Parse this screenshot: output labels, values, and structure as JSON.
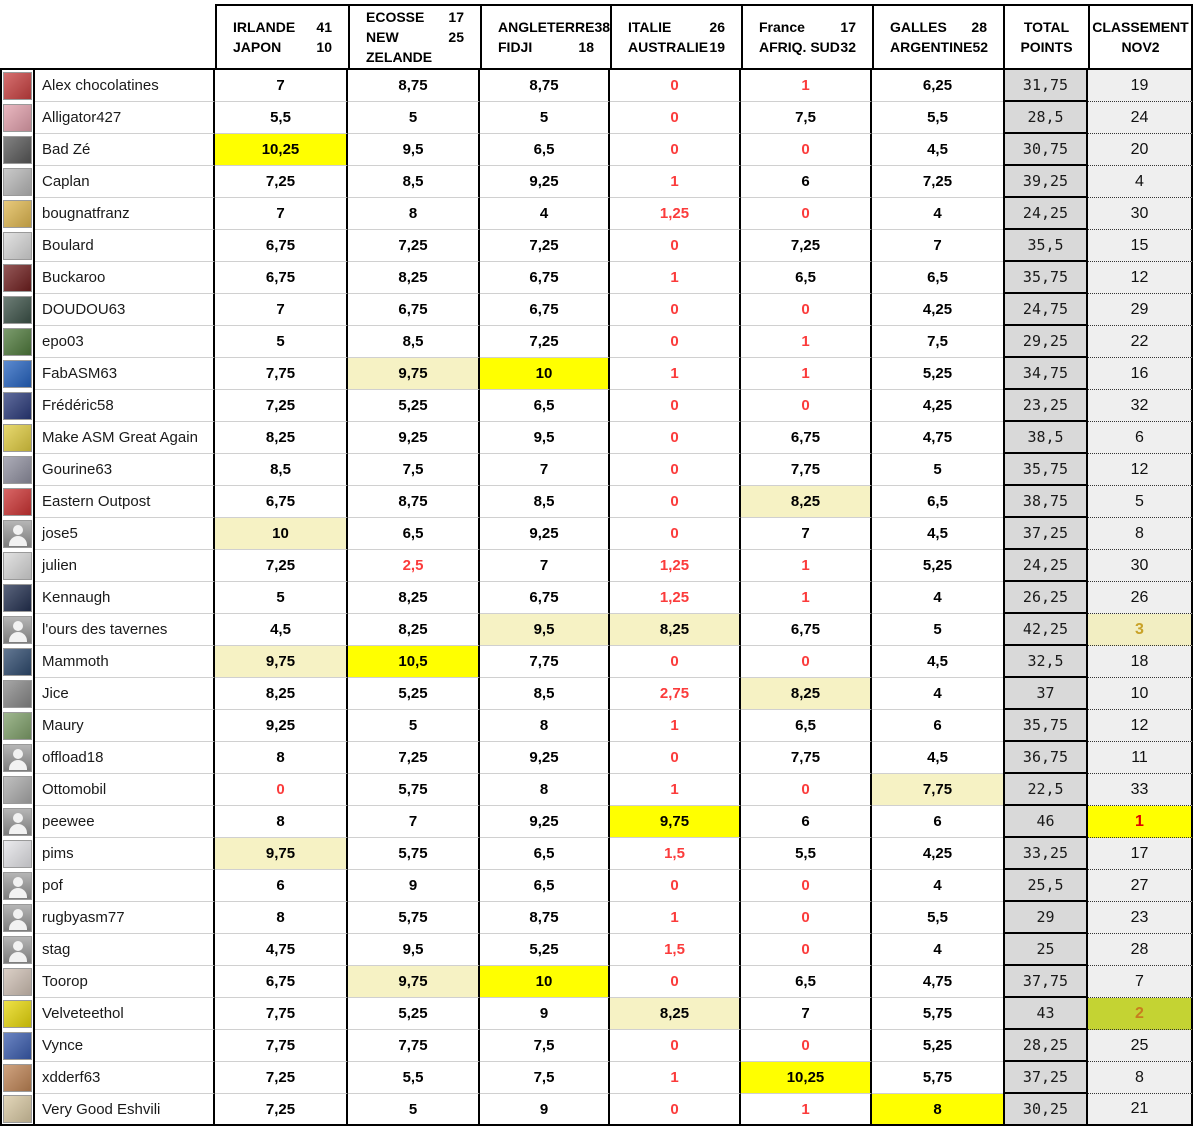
{
  "header": {
    "matches": [
      {
        "team1": "IRLANDE",
        "score1": "41",
        "team2": "JAPON",
        "score2": "10"
      },
      {
        "team1": "ECOSSE",
        "score1": "17",
        "team2": "NEW ZELANDE",
        "score2": "25"
      },
      {
        "team1": "ANGLETERRE",
        "score1": "38",
        "team2": "FIDJI",
        "score2": "18"
      },
      {
        "team1": "ITALIE",
        "score1": "26",
        "team2": "AUSTRALIE",
        "score2": "19"
      },
      {
        "team1": "France",
        "score1": "17",
        "team2": "AFRIQ. SUD",
        "score2": "32"
      },
      {
        "team1": "GALLES",
        "score1": "28",
        "team2": "ARGENTINE",
        "score2": "52"
      }
    ],
    "total": {
      "line1": "TOTAL",
      "line2": "POINTS"
    },
    "classement": {
      "line1": "CLASSEMENT",
      "line2": "NOV2"
    }
  },
  "colors": {
    "highlight_bright": "#ffff00",
    "highlight_pale": "#f6f2c4",
    "red_text": "#fb3b3b",
    "total_bg": "#d9d9d9",
    "classement_bg": "#efefef",
    "rank1_bg": "#ffff00",
    "rank1_text": "#e00000",
    "rank2_bg": "#c4d333",
    "rank2_text": "#c87d1e",
    "rank3_bg": "#f2eec2",
    "rank3_text": "#c9a227",
    "error_indicator": "#1e7145"
  },
  "rows": [
    {
      "name": "Alex chocolatines",
      "avatar": {
        "kind": "photo",
        "color": "#c84040"
      },
      "scores": [
        "7",
        "8,75",
        "8,75",
        "0",
        "1",
        "6,25"
      ],
      "hl": [
        "",
        "",
        "",
        "",
        "",
        ""
      ],
      "total": "31,75",
      "rank": "19",
      "rank_style": ""
    },
    {
      "name": "Alligator427",
      "avatar": {
        "kind": "photo",
        "color": "#e2a0ac"
      },
      "scores": [
        "5,5",
        "5",
        "5",
        "0",
        "7,5",
        "5,5"
      ],
      "hl": [
        "",
        "",
        "",
        "",
        "",
        ""
      ],
      "total": "28,5",
      "rank": "24",
      "rank_style": ""
    },
    {
      "name": "Bad Zé",
      "avatar": {
        "kind": "photo",
        "color": "#585858"
      },
      "scores": [
        "10,25",
        "9,5",
        "6,5",
        "0",
        "0",
        "4,5"
      ],
      "hl": [
        "b",
        "",
        "",
        "",
        "",
        ""
      ],
      "total": "30,75",
      "rank": "20",
      "rank_style": ""
    },
    {
      "name": "Caplan",
      "avatar": {
        "kind": "photo",
        "color": "#b8b8b8"
      },
      "scores": [
        "7,25",
        "8,5",
        "9,25",
        "1",
        "6",
        "7,25"
      ],
      "hl": [
        "",
        "",
        "",
        "",
        "",
        ""
      ],
      "total": "39,25",
      "rank": "4",
      "rank_style": ""
    },
    {
      "name": "bougnatfranz",
      "avatar": {
        "kind": "photo",
        "color": "#e0b850"
      },
      "scores": [
        "7",
        "8",
        "4",
        "1,25",
        "0",
        "4"
      ],
      "hl": [
        "",
        "",
        "",
        "",
        "",
        ""
      ],
      "total": "24,25",
      "rank": "30",
      "rank_style": ""
    },
    {
      "name": "Boulard",
      "avatar": {
        "kind": "photo",
        "color": "#d8d8d8"
      },
      "scores": [
        "6,75",
        "7,25",
        "7,25",
        "0",
        "7,25",
        "7"
      ],
      "hl": [
        "",
        "",
        "",
        "",
        "",
        ""
      ],
      "total": "35,5",
      "rank": "15",
      "rank_style": ""
    },
    {
      "name": "Buckaroo",
      "avatar": {
        "kind": "photo",
        "color": "#701f1f"
      },
      "scores": [
        "6,75",
        "8,25",
        "6,75",
        "1",
        "6,5",
        "6,5"
      ],
      "hl": [
        "",
        "",
        "",
        "",
        "",
        ""
      ],
      "total": "35,75",
      "rank": "12",
      "rank_style": ""
    },
    {
      "name": "DOUDOU63",
      "avatar": {
        "kind": "photo",
        "color": "#3c5248"
      },
      "scores": [
        "7",
        "6,75",
        "6,75",
        "0",
        "0",
        "4,25"
      ],
      "hl": [
        "",
        "",
        "",
        "",
        "",
        ""
      ],
      "total": "24,75",
      "rank": "29",
      "rank_style": ""
    },
    {
      "name": "epo03",
      "avatar": {
        "kind": "photo",
        "color": "#4f7a3c"
      },
      "scores": [
        "5",
        "8,5",
        "7,25",
        "0",
        "1",
        "7,5"
      ],
      "hl": [
        "",
        "",
        "",
        "",
        "",
        ""
      ],
      "total": "29,25",
      "rank": "22",
      "rank_style": ""
    },
    {
      "name": "FabASM63",
      "avatar": {
        "kind": "photo",
        "color": "#2563c0"
      },
      "scores": [
        "7,75",
        "9,75",
        "10",
        "1",
        "1",
        "5,25"
      ],
      "hl": [
        "",
        "p",
        "b",
        "",
        "",
        ""
      ],
      "total": "34,75",
      "rank": "16",
      "rank_style": ""
    },
    {
      "name": "Frédéric58",
      "avatar": {
        "kind": "photo",
        "color": "#2a3a7a"
      },
      "scores": [
        "7,25",
        "5,25",
        "6,5",
        "0",
        "0",
        "4,25"
      ],
      "hl": [
        "",
        "",
        "",
        "",
        "",
        ""
      ],
      "total": "23,25",
      "rank": "32",
      "rank_style": ""
    },
    {
      "name": "Make ASM Great Again",
      "avatar": {
        "kind": "photo",
        "color": "#e0cc40"
      },
      "scores": [
        "8,25",
        "9,25",
        "9,5",
        "0",
        "6,75",
        "4,75"
      ],
      "hl": [
        "",
        "",
        "",
        "",
        "",
        ""
      ],
      "total": "38,5",
      "rank": "6",
      "rank_style": ""
    },
    {
      "name": "Gourine63",
      "avatar": {
        "kind": "photo",
        "color": "#9090a0"
      },
      "scores": [
        "8,5",
        "7,5",
        "7",
        "0",
        "7,75",
        "5"
      ],
      "hl": [
        "",
        "",
        "",
        "",
        "",
        ""
      ],
      "total": "35,75",
      "rank": "12",
      "rank_style": ""
    },
    {
      "name": "Eastern Outpost",
      "avatar": {
        "kind": "photo",
        "color": "#cc3333"
      },
      "scores": [
        "6,75",
        "8,75",
        "8,5",
        "0",
        "8,25",
        "6,5"
      ],
      "hl": [
        "",
        "",
        "",
        "",
        "p",
        ""
      ],
      "total": "38,75",
      "rank": "5",
      "rank_style": ""
    },
    {
      "name": "jose5",
      "avatar": {
        "kind": "silhouette",
        "color": "#909090"
      },
      "scores": [
        "10",
        "6,5",
        "9,25",
        "0",
        "7",
        "4,5"
      ],
      "hl": [
        "p",
        "",
        "",
        "",
        "",
        ""
      ],
      "total": "37,25",
      "rank": "8",
      "rank_style": ""
    },
    {
      "name": "julien",
      "avatar": {
        "kind": "photo",
        "color": "#d8d8d8"
      },
      "scores": [
        "7,25",
        "2,5",
        "7",
        "1,25",
        "1",
        "5,25"
      ],
      "hl": [
        "",
        "",
        "",
        "",
        "",
        ""
      ],
      "total": "24,25",
      "rank": "30",
      "rank_style": ""
    },
    {
      "name": "Kennaugh",
      "avatar": {
        "kind": "photo",
        "color": "#233050"
      },
      "scores": [
        "5",
        "8,25",
        "6,75",
        "1,25",
        "1",
        "4"
      ],
      "hl": [
        "",
        "",
        "",
        "",
        "",
        ""
      ],
      "total": "26,25",
      "rank": "26",
      "rank_style": ""
    },
    {
      "name": "l'ours des tavernes",
      "avatar": {
        "kind": "silhouette",
        "color": "#909090"
      },
      "scores": [
        "4,5",
        "8,25",
        "9,5",
        "8,25",
        "6,75",
        "5"
      ],
      "hl": [
        "",
        "",
        "p",
        "p",
        "",
        ""
      ],
      "total": "42,25",
      "rank": "3",
      "rank_style": "r3"
    },
    {
      "name": "Mammoth",
      "avatar": {
        "kind": "photo",
        "color": "#2e4a6e"
      },
      "scores": [
        "9,75",
        "10,5",
        "7,75",
        "0",
        "0",
        "4,5"
      ],
      "hl": [
        "p",
        "b",
        "",
        "",
        "",
        ""
      ],
      "total": "32,5",
      "rank": "18",
      "rank_style": ""
    },
    {
      "name": "Jice",
      "avatar": {
        "kind": "photo",
        "color": "#888888"
      },
      "scores": [
        "8,25",
        "5,25",
        "8,5",
        "2,75",
        "8,25",
        "4"
      ],
      "hl": [
        "",
        "",
        "",
        "",
        "p",
        ""
      ],
      "total": "37",
      "rank": "10",
      "rank_style": ""
    },
    {
      "name": "Maury",
      "avatar": {
        "kind": "photo",
        "color": "#7fa06a"
      },
      "scores": [
        "9,25",
        "5",
        "8",
        "1",
        "6,5",
        "6"
      ],
      "hl": [
        "",
        "",
        "",
        "",
        "",
        ""
      ],
      "total": "35,75",
      "rank": "12",
      "rank_style": ""
    },
    {
      "name": "offload18",
      "avatar": {
        "kind": "silhouette",
        "color": "#909090"
      },
      "scores": [
        "8",
        "7,25",
        "9,25",
        "0",
        "7,75",
        "4,5"
      ],
      "hl": [
        "",
        "",
        "",
        "",
        "",
        ""
      ],
      "total": "36,75",
      "rank": "11",
      "rank_style": ""
    },
    {
      "name": "Ottomobil",
      "avatar": {
        "kind": "photo",
        "color": "#ababab"
      },
      "scores": [
        "0",
        "5,75",
        "8",
        "1",
        "0",
        "7,75"
      ],
      "hl": [
        "",
        "",
        "",
        "",
        "",
        "p"
      ],
      "total": "22,5",
      "rank": "33",
      "rank_style": ""
    },
    {
      "name": "peewee",
      "avatar": {
        "kind": "silhouette",
        "color": "#909090"
      },
      "scores": [
        "8",
        "7",
        "9,25",
        "9,75",
        "6",
        "6"
      ],
      "hl": [
        "",
        "",
        "",
        "b",
        "",
        ""
      ],
      "total": "46",
      "rank": "1",
      "rank_style": "r1"
    },
    {
      "name": "pims",
      "avatar": {
        "kind": "photo",
        "color": "#e4e4e8"
      },
      "scores": [
        "9,75",
        "5,75",
        "6,5",
        "1,5",
        "5,5",
        "4,25"
      ],
      "hl": [
        "p",
        "",
        "",
        "",
        "",
        ""
      ],
      "total": "33,25",
      "rank": "17",
      "rank_style": ""
    },
    {
      "name": "pof",
      "avatar": {
        "kind": "silhouette",
        "color": "#909090"
      },
      "scores": [
        "6",
        "9",
        "6,5",
        "0",
        "0",
        "4"
      ],
      "hl": [
        "",
        "",
        "",
        "",
        "",
        ""
      ],
      "total": "25,5",
      "rank": "27",
      "rank_style": ""
    },
    {
      "name": "rugbyasm77",
      "avatar": {
        "kind": "silhouette",
        "color": "#909090"
      },
      "scores": [
        "8",
        "5,75",
        "8,75",
        "1",
        "0",
        "5,5"
      ],
      "hl": [
        "",
        "",
        "",
        "",
        "",
        ""
      ],
      "total": "29",
      "rank": "23",
      "rank_style": ""
    },
    {
      "name": "stag",
      "avatar": {
        "kind": "silhouette",
        "color": "#909090"
      },
      "scores": [
        "4,75",
        "9,5",
        "5,25",
        "1,5",
        "0",
        "4"
      ],
      "hl": [
        "",
        "",
        "",
        "",
        "",
        ""
      ],
      "total": "25",
      "rank": "28",
      "rank_style": ""
    },
    {
      "name": "Toorop",
      "avatar": {
        "kind": "photo",
        "color": "#cfc0b4"
      },
      "scores": [
        "6,75",
        "9,75",
        "10",
        "0",
        "6,5",
        "4,75"
      ],
      "hl": [
        "",
        "p",
        "b",
        "",
        "",
        ""
      ],
      "total": "37,75",
      "rank": "7",
      "rank_style": ""
    },
    {
      "name": "Velveteethol",
      "avatar": {
        "kind": "photo",
        "color": "#e8d80a"
      },
      "scores": [
        "7,75",
        "5,25",
        "9",
        "8,25",
        "7",
        "5,75"
      ],
      "hl": [
        "",
        "",
        "",
        "p",
        "",
        ""
      ],
      "total": "43",
      "rank": "2",
      "rank_style": "r2"
    },
    {
      "name": "Vynce",
      "avatar": {
        "kind": "photo",
        "color": "#3a5cae"
      },
      "scores": [
        "7,75",
        "7,75",
        "7,5",
        "0",
        "0",
        "5,25"
      ],
      "hl": [
        "",
        "",
        "",
        "",
        "",
        ""
      ],
      "total": "28,25",
      "rank": "25",
      "rank_style": ""
    },
    {
      "name": "xdderf63",
      "avatar": {
        "kind": "photo",
        "color": "#bf8455"
      },
      "scores": [
        "7,25",
        "5,5",
        "7,5",
        "1",
        "10,25",
        "5,75"
      ],
      "hl": [
        "",
        "",
        "",
        "",
        "b",
        ""
      ],
      "total": "37,25",
      "rank": "8",
      "rank_style": ""
    },
    {
      "name": "Very Good Eshvili",
      "avatar": {
        "kind": "photo",
        "color": "#d9c9a3"
      },
      "scores": [
        "7,25",
        "5",
        "9",
        "0",
        "1",
        "8"
      ],
      "hl": [
        "",
        "",
        "",
        "",
        "",
        "b"
      ],
      "total": "30,25",
      "rank": "21",
      "rank_style": ""
    }
  ]
}
